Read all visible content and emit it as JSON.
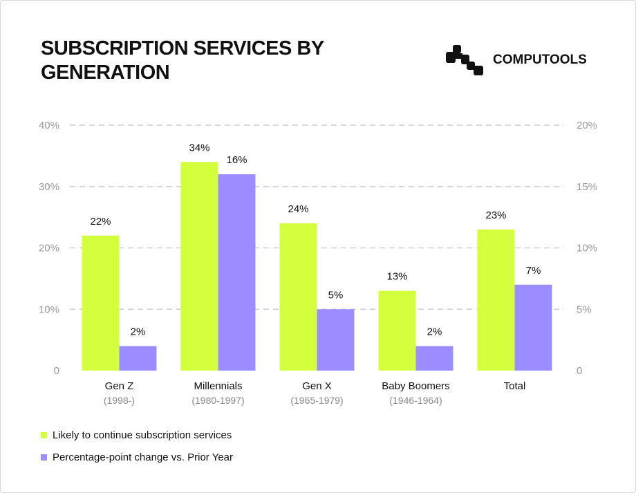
{
  "title": "SUBSCRIPTION SERVICES BY GENERATION",
  "logo": {
    "text": "COMPUTOOLS"
  },
  "chart_data": {
    "type": "bar",
    "title": "SUBSCRIPTION SERVICES BY GENERATION",
    "categories": [
      "Gen Z",
      "Millennials",
      "Gen X",
      "Baby Boomers",
      "Total"
    ],
    "category_sublabels": [
      "(1998-)",
      "(1980-1997)",
      "(1965-1979)",
      "(1946-1964)",
      ""
    ],
    "left_axis": {
      "ylim": [
        0,
        40
      ],
      "ticks": [
        "0",
        "10%",
        "20%",
        "30%",
        "40%"
      ]
    },
    "right_axis": {
      "ylim": [
        0,
        20
      ],
      "ticks": [
        "0",
        "5%",
        "10%",
        "15%",
        "20%"
      ]
    },
    "grid": true,
    "legend_position": "bottom-left",
    "series": [
      {
        "name": "Likely to continue subscription services",
        "axis": "left",
        "color": "#d4ff3c",
        "values": [
          22,
          34,
          24,
          13,
          23
        ],
        "labels": [
          "22%",
          "34%",
          "24%",
          "13%",
          "23%"
        ]
      },
      {
        "name": "Percentage-point change vs. Prior Year",
        "axis": "right",
        "color": "#9b8cff",
        "values": [
          2,
          16,
          5,
          2,
          7
        ],
        "labels": [
          "2%",
          "16%",
          "5%",
          "2%",
          "7%"
        ]
      }
    ]
  }
}
